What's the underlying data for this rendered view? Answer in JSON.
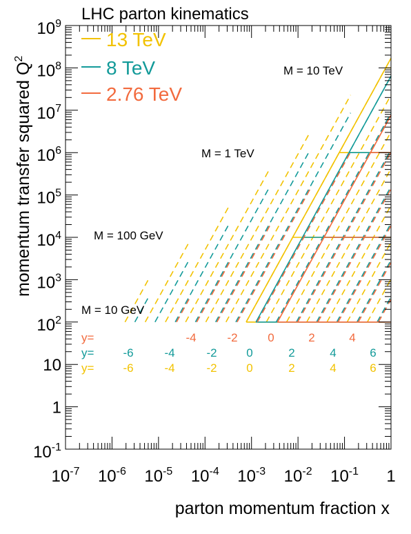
{
  "chart_data": {
    "type": "line",
    "title": "LHC parton kinematics",
    "xlabel": "parton momentum fraction x",
    "ylabel": "momentum transfer squared Q",
    "ylabel_sup": "2",
    "xscale": "log",
    "yscale": "log",
    "xlim": [
      1e-07,
      1
    ],
    "ylim": [
      0.1,
      1000000000.0
    ],
    "x_ticks": [
      {
        "base": "10",
        "exp": "-7",
        "value": 1e-07
      },
      {
        "base": "10",
        "exp": "-6",
        "value": 1e-06
      },
      {
        "base": "10",
        "exp": "-5",
        "value": 1e-05
      },
      {
        "base": "10",
        "exp": "-4",
        "value": 0.0001
      },
      {
        "base": "10",
        "exp": "-3",
        "value": 0.001
      },
      {
        "base": "10",
        "exp": "-2",
        "value": 0.01
      },
      {
        "base": "10",
        "exp": "-1",
        "value": 0.1
      },
      {
        "base": "1",
        "exp": "",
        "value": 1
      }
    ],
    "y_ticks": [
      {
        "base": "10",
        "exp": "-1",
        "value": 0.1
      },
      {
        "base": "1",
        "exp": "",
        "value": 1
      },
      {
        "base": "10",
        "exp": "",
        "value": 10
      },
      {
        "base": "10",
        "exp": "2",
        "value": 100
      },
      {
        "base": "10",
        "exp": "3",
        "value": 1000
      },
      {
        "base": "10",
        "exp": "4",
        "value": 10000
      },
      {
        "base": "10",
        "exp": "5",
        "value": 100000
      },
      {
        "base": "10",
        "exp": "6",
        "value": 1000000
      },
      {
        "base": "10",
        "exp": "7",
        "value": 10000000
      },
      {
        "base": "10",
        "exp": "8",
        "value": 100000000
      },
      {
        "base": "10",
        "exp": "9",
        "value": 1000000000
      }
    ],
    "grid": false,
    "legend_position": "top-left",
    "series": [
      {
        "name": "13 TeV",
        "sqrt_s_gev": 13000,
        "color": "#f2c200"
      },
      {
        "name": "8 TeV",
        "sqrt_s_gev": 8000,
        "color": "#129a99"
      },
      {
        "name": "2.76 TeV",
        "sqrt_s_gev": 2760,
        "color": "#f26a3d"
      }
    ],
    "mass_lines": [
      {
        "label": "M = 10 GeV",
        "mass_gev": 10
      },
      {
        "label": "M = 100 GeV",
        "mass_gev": 100
      },
      {
        "label": "M = 1 TeV",
        "mass_gev": 1000
      },
      {
        "label": "M = 10 TeV",
        "mass_gev": 10000
      }
    ],
    "rapidity_rows": [
      {
        "prefix": "y=",
        "values": [
          "-4",
          "-2",
          "0",
          "2",
          "4"
        ],
        "series": "2.76 TeV"
      },
      {
        "prefix": "y=",
        "values": [
          "-6",
          "-4",
          "-2",
          "0",
          "2",
          "4",
          "6"
        ],
        "series": "8 TeV"
      },
      {
        "prefix": "y=",
        "values": [
          "-6",
          "-4",
          "-2",
          "0",
          "2",
          "4",
          "6"
        ],
        "series": "13 TeV"
      }
    ]
  }
}
